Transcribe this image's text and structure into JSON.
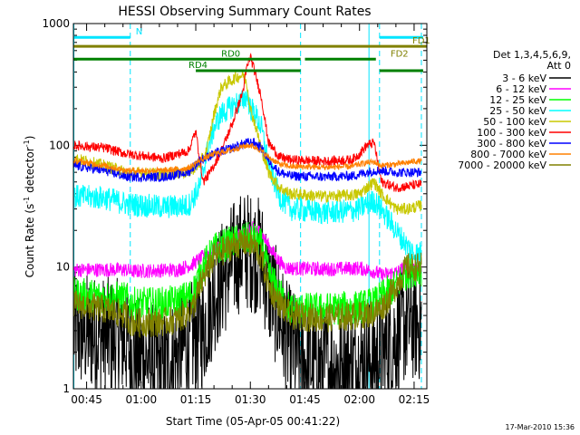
{
  "chart_data": {
    "type": "line",
    "title": "HESSI Observing Summary Count Rates",
    "xlabel": "Start Time (05-Apr-05 00:41:22)",
    "ylabel_main": "Count Rate (s",
    "ylabel_sup1": "-1",
    "ylabel_mid": " detector",
    "ylabel_sup2": "-1",
    "ylabel_end": ")",
    "yscale": "log",
    "ylim": [
      1,
      1000
    ],
    "xlim_minutes": [
      41.37,
      138.5
    ],
    "y_ticks": [
      {
        "value": 1,
        "label": "1"
      },
      {
        "value": 10,
        "label": "10"
      },
      {
        "value": 100,
        "label": "100"
      },
      {
        "value": 1000,
        "label": "1000"
      }
    ],
    "x_ticks": [
      {
        "value": 45,
        "label": "00:45"
      },
      {
        "value": 60,
        "label": "01:00"
      },
      {
        "value": 75,
        "label": "01:15"
      },
      {
        "value": 90,
        "label": "01:30"
      },
      {
        "value": 105,
        "label": "01:45"
      },
      {
        "value": 120,
        "label": "02:00"
      },
      {
        "value": 135,
        "label": "02:15"
      }
    ],
    "legend_header": [
      "Det 1,3,4,5,6,9,",
      "Att 0"
    ],
    "timestamp": "17-Mar-2010 15:36",
    "vlines": [
      {
        "x": 41.5,
        "style": "solid",
        "color": "#00e5ff"
      },
      {
        "x": 57.0,
        "style": "dashed",
        "color": "#00e5ff"
      },
      {
        "x": 103.8,
        "style": "dashed",
        "color": "#00e5ff"
      },
      {
        "x": 122.6,
        "style": "solid",
        "color": "#00e5ff"
      },
      {
        "x": 125.5,
        "style": "dashed",
        "color": "#00e5ff"
      },
      {
        "x": 137.0,
        "style": "dashed",
        "color": "#00e5ff"
      }
    ],
    "flags": [
      {
        "label": "N",
        "color": "#00e5ff",
        "y": 770,
        "segments": [
          [
            41.5,
            57.0
          ],
          [
            125.5,
            137.5
          ]
        ],
        "label_x": 58.5
      },
      {
        "label": "FD1",
        "color": "#808000",
        "y": 650,
        "segments": [
          [
            41.5,
            138.5
          ]
        ],
        "label_x": 134.5
      },
      {
        "label": "FD2",
        "color": "#808000",
        "y": 510,
        "segments": [],
        "label_x": 128.5
      },
      {
        "label": "RD0",
        "color": "#008000",
        "y": 510,
        "segments": [
          [
            41.5,
            103.8
          ],
          [
            105.0,
            124.5
          ]
        ],
        "label_x": 82.0
      },
      {
        "label": "RD4",
        "color": "#008000",
        "y": 410,
        "segments": [
          [
            75.0,
            103.8
          ],
          [
            125.5,
            137.5
          ]
        ],
        "label_x": 73.0
      }
    ],
    "series": [
      {
        "name": "3 - 6 keV",
        "color": "#000000",
        "noise": 0.5,
        "points": [
          [
            41.5,
            3
          ],
          [
            56,
            2.5
          ],
          [
            57,
            2
          ],
          [
            66,
            1.5
          ],
          [
            74,
            2.5
          ],
          [
            77,
            3
          ],
          [
            80,
            6
          ],
          [
            85,
            11
          ],
          [
            88,
            14
          ],
          [
            91,
            13
          ],
          [
            93,
            12
          ],
          [
            95,
            7
          ],
          [
            98,
            4
          ],
          [
            100,
            2.5
          ],
          [
            104,
            1.7
          ],
          [
            110,
            1.5
          ],
          [
            120,
            1.6
          ],
          [
            124,
            1.8
          ],
          [
            127,
            2
          ],
          [
            131,
            3
          ],
          [
            133,
            3.5
          ],
          [
            137,
            3.5
          ]
        ]
      },
      {
        "name": "6 - 12 keV",
        "color": "#ff00ff",
        "noise": 0.06,
        "points": [
          [
            41.5,
            9.5
          ],
          [
            56,
            9.5
          ],
          [
            57,
            9.2
          ],
          [
            70,
            9.5
          ],
          [
            74,
            10.5
          ],
          [
            80,
            14
          ],
          [
            85,
            17
          ],
          [
            89,
            19
          ],
          [
            91,
            21
          ],
          [
            93,
            19
          ],
          [
            95,
            15
          ],
          [
            98,
            11
          ],
          [
            100,
            9.8
          ],
          [
            110,
            9.6
          ],
          [
            120,
            9.8
          ],
          [
            124,
            9.2
          ],
          [
            126,
            8.6
          ],
          [
            130,
            9
          ],
          [
            133,
            10
          ],
          [
            135,
            10
          ],
          [
            137,
            10
          ]
        ]
      },
      {
        "name": "12 - 25 keV",
        "color": "#00ff00",
        "noise": 0.14,
        "points": [
          [
            41.5,
            6
          ],
          [
            56,
            5.5
          ],
          [
            57,
            5
          ],
          [
            65,
            5
          ],
          [
            70,
            5.2
          ],
          [
            74,
            6
          ],
          [
            77,
            10
          ],
          [
            80,
            14
          ],
          [
            85,
            16
          ],
          [
            89,
            17
          ],
          [
            91,
            17
          ],
          [
            93,
            15
          ],
          [
            95,
            9
          ],
          [
            98,
            6
          ],
          [
            101,
            4.5
          ],
          [
            110,
            4.5
          ],
          [
            120,
            4.7
          ],
          [
            124,
            5
          ],
          [
            127,
            6
          ],
          [
            130,
            7
          ],
          [
            133,
            9
          ],
          [
            135,
            9.5
          ],
          [
            137,
            9.5
          ]
        ]
      },
      {
        "name": "25 - 50 keV",
        "color": "#00ffff",
        "noise": 0.1,
        "points": [
          [
            41.5,
            38
          ],
          [
            50,
            37
          ],
          [
            56,
            33
          ],
          [
            66,
            31
          ],
          [
            73,
            32
          ],
          [
            76,
            45
          ],
          [
            78,
            85
          ],
          [
            80,
            140
          ],
          [
            82,
            180
          ],
          [
            84,
            200
          ],
          [
            86,
            220
          ],
          [
            88,
            230
          ],
          [
            89,
            260
          ],
          [
            90,
            200
          ],
          [
            91,
            190
          ],
          [
            93,
            140
          ],
          [
            95,
            70
          ],
          [
            98,
            38
          ],
          [
            101,
            30
          ],
          [
            110,
            28
          ],
          [
            118,
            29
          ],
          [
            120,
            30
          ],
          [
            122,
            33
          ],
          [
            124,
            35
          ],
          [
            126,
            30
          ],
          [
            130,
            20
          ],
          [
            133,
            15
          ],
          [
            135,
            13
          ],
          [
            137,
            13
          ]
        ]
      },
      {
        "name": "50 - 100 keV",
        "color": "#c8c800",
        "noise": 0.05,
        "points": [
          [
            41.5,
            78
          ],
          [
            50,
            68
          ],
          [
            56,
            60
          ],
          [
            66,
            58
          ],
          [
            73,
            60
          ],
          [
            76,
            70
          ],
          [
            78,
            90
          ],
          [
            80,
            180
          ],
          [
            82,
            300
          ],
          [
            84,
            330
          ],
          [
            86,
            360
          ],
          [
            88,
            380
          ],
          [
            89,
            330
          ],
          [
            90,
            200
          ],
          [
            91,
            160
          ],
          [
            93,
            95
          ],
          [
            95,
            60
          ],
          [
            98,
            45
          ],
          [
            101,
            40
          ],
          [
            110,
            38
          ],
          [
            118,
            39
          ],
          [
            120,
            40
          ],
          [
            122,
            45
          ],
          [
            124,
            50
          ],
          [
            126,
            40
          ],
          [
            130,
            30
          ],
          [
            133,
            30
          ],
          [
            135,
            31
          ],
          [
            137,
            32
          ]
        ]
      },
      {
        "name": "100 - 300 keV",
        "color": "#ff0000",
        "noise": 0.04,
        "points": [
          [
            41.5,
            100
          ],
          [
            50,
            95
          ],
          [
            56,
            85
          ],
          [
            66,
            78
          ],
          [
            73,
            90
          ],
          [
            75,
            130
          ],
          [
            77,
            50
          ],
          [
            79,
            60
          ],
          [
            82,
            90
          ],
          [
            85,
            150
          ],
          [
            88,
            280
          ],
          [
            89,
            430
          ],
          [
            90,
            540
          ],
          [
            91,
            420
          ],
          [
            93,
            250
          ],
          [
            95,
            105
          ],
          [
            98,
            80
          ],
          [
            101,
            76
          ],
          [
            110,
            74
          ],
          [
            118,
            76
          ],
          [
            120,
            85
          ],
          [
            122,
            100
          ],
          [
            124,
            105
          ],
          [
            126,
            50
          ],
          [
            130,
            45
          ],
          [
            133,
            46
          ],
          [
            135,
            47
          ],
          [
            137,
            48
          ]
        ]
      },
      {
        "name": "300 - 800 keV",
        "color": "#0000ff",
        "noise": 0.04,
        "points": [
          [
            41.5,
            68
          ],
          [
            50,
            62
          ],
          [
            56,
            55
          ],
          [
            66,
            55
          ],
          [
            73,
            60
          ],
          [
            76,
            75
          ],
          [
            80,
            85
          ],
          [
            85,
            95
          ],
          [
            89,
            105
          ],
          [
            91,
            105
          ],
          [
            93,
            95
          ],
          [
            95,
            75
          ],
          [
            98,
            60
          ],
          [
            101,
            56
          ],
          [
            110,
            55
          ],
          [
            118,
            56
          ],
          [
            120,
            58
          ],
          [
            122,
            60
          ],
          [
            124,
            62
          ],
          [
            126,
            62
          ],
          [
            130,
            60
          ],
          [
            133,
            60
          ],
          [
            135,
            60
          ],
          [
            137,
            60
          ]
        ]
      },
      {
        "name": "800 - 7000 keV",
        "color": "#ff8000",
        "noise": 0.025,
        "points": [
          [
            41.5,
            75
          ],
          [
            50,
            68
          ],
          [
            56,
            62
          ],
          [
            66,
            62
          ],
          [
            73,
            65
          ],
          [
            76,
            75
          ],
          [
            80,
            85
          ],
          [
            85,
            92
          ],
          [
            88,
            98
          ],
          [
            90,
            100
          ],
          [
            92,
            95
          ],
          [
            95,
            80
          ],
          [
            98,
            70
          ],
          [
            101,
            67
          ],
          [
            110,
            66
          ],
          [
            118,
            67
          ],
          [
            120,
            70
          ],
          [
            122,
            72
          ],
          [
            124,
            73
          ],
          [
            126,
            68
          ],
          [
            130,
            70
          ],
          [
            133,
            72
          ],
          [
            135,
            74
          ],
          [
            137,
            74
          ]
        ]
      },
      {
        "name": "7000 - 20000 keV",
        "color": "#808000",
        "noise": 0.12,
        "points": [
          [
            41.5,
            5
          ],
          [
            50,
            4.5
          ],
          [
            56,
            4
          ],
          [
            57,
            3.5
          ],
          [
            65,
            3.5
          ],
          [
            70,
            3.7
          ],
          [
            74,
            4.5
          ],
          [
            77,
            8
          ],
          [
            80,
            12
          ],
          [
            85,
            15
          ],
          [
            89,
            16
          ],
          [
            91,
            15
          ],
          [
            93,
            12
          ],
          [
            95,
            7
          ],
          [
            98,
            5
          ],
          [
            101,
            4
          ],
          [
            110,
            3.8
          ],
          [
            120,
            4
          ],
          [
            124,
            4.2
          ],
          [
            127,
            5
          ],
          [
            130,
            7
          ],
          [
            133,
            10
          ],
          [
            135,
            10
          ],
          [
            137,
            10
          ]
        ]
      }
    ]
  }
}
